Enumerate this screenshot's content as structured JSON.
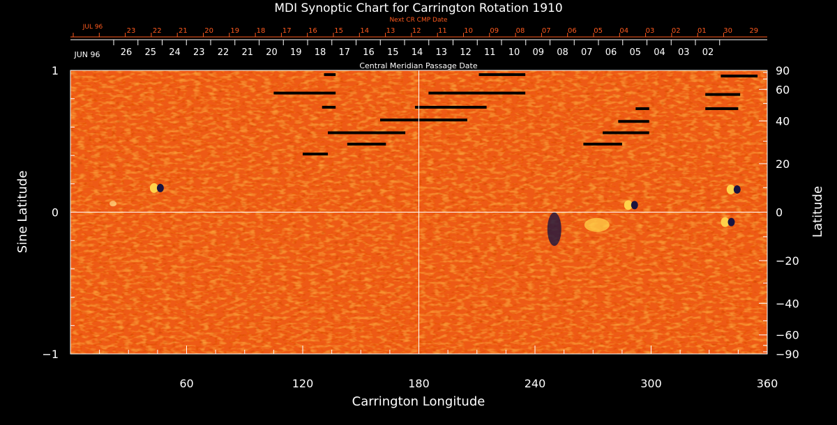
{
  "chart_data": {
    "type": "heatmap",
    "title": "MDI Synoptic Chart for Carrington Rotation 1910",
    "xlabel": "Carrington Longitude",
    "ylabel_left": "Sine Latitude",
    "ylabel_right": "Latitude",
    "xlim": [
      0,
      360
    ],
    "ylim": [
      -1,
      1
    ],
    "x_ticks": [
      60,
      120,
      180,
      240,
      300,
      360
    ],
    "y_ticks_left": [
      -1,
      0,
      1
    ],
    "y_ticks_right": [
      90,
      60,
      40,
      20,
      0,
      -20,
      -40,
      -60,
      -90
    ],
    "next_cr_label": "Next CR CMP Date",
    "next_cr_month": "JUL 96",
    "next_cr_dates": [
      "23",
      "22",
      "21",
      "20",
      "19",
      "18",
      "17",
      "16",
      "15",
      "14",
      "13",
      "12",
      "11",
      "10",
      "09",
      "08",
      "07",
      "06",
      "05",
      "04",
      "03",
      "02",
      "01",
      "30",
      "29"
    ],
    "cmp_month": "JUN 96",
    "cmp_label": "Central Meridian Passage Date",
    "cmp_dates": [
      "26",
      "25",
      "24",
      "23",
      "22",
      "21",
      "20",
      "19",
      "18",
      "17",
      "16",
      "15",
      "14",
      "13",
      "12",
      "11",
      "10",
      "09",
      "08",
      "07",
      "06",
      "05",
      "04",
      "03",
      "02"
    ],
    "grid_lines": {
      "x": [
        180
      ],
      "y": [
        0
      ]
    },
    "colors": {
      "background": "#000000",
      "map_base": "#ee5a14",
      "positive": "#ffd24a",
      "negative": "#1a1440",
      "grid": "#ffffff",
      "date_red": "#ff5a1e"
    },
    "active_regions": [
      {
        "lon": 45,
        "sinlat": 0.17,
        "polarity": "bipolar"
      },
      {
        "lon": 22,
        "sinlat": 0.06,
        "polarity": "weak"
      },
      {
        "lon": 250,
        "sinlat": -0.12,
        "polarity": "negative"
      },
      {
        "lon": 272,
        "sinlat": -0.09,
        "polarity": "positive"
      },
      {
        "lon": 290,
        "sinlat": 0.05,
        "polarity": "bipolar"
      },
      {
        "lon": 340,
        "sinlat": -0.07,
        "polarity": "bipolar"
      },
      {
        "lon": 343,
        "sinlat": 0.16,
        "polarity": "bipolar"
      }
    ],
    "data_gaps": [
      {
        "lon_start": 131,
        "lon_end": 137,
        "sinlat": 0.97
      },
      {
        "lon_start": 211,
        "lon_end": 235,
        "sinlat": 0.97
      },
      {
        "lon_start": 336,
        "lon_end": 355,
        "sinlat": 0.96
      },
      {
        "lon_start": 105,
        "lon_end": 137,
        "sinlat": 0.84
      },
      {
        "lon_start": 185,
        "lon_end": 235,
        "sinlat": 0.84
      },
      {
        "lon_start": 328,
        "lon_end": 346,
        "sinlat": 0.83
      },
      {
        "lon_start": 130,
        "lon_end": 137,
        "sinlat": 0.74
      },
      {
        "lon_start": 178,
        "lon_end": 215,
        "sinlat": 0.74
      },
      {
        "lon_start": 292,
        "lon_end": 299,
        "sinlat": 0.73
      },
      {
        "lon_start": 328,
        "lon_end": 345,
        "sinlat": 0.73
      },
      {
        "lon_start": 160,
        "lon_end": 205,
        "sinlat": 0.65
      },
      {
        "lon_start": 283,
        "lon_end": 299,
        "sinlat": 0.64
      },
      {
        "lon_start": 133,
        "lon_end": 173,
        "sinlat": 0.56
      },
      {
        "lon_start": 275,
        "lon_end": 299,
        "sinlat": 0.56
      },
      {
        "lon_start": 143,
        "lon_end": 163,
        "sinlat": 0.48
      },
      {
        "lon_start": 265,
        "lon_end": 285,
        "sinlat": 0.48
      },
      {
        "lon_start": 120,
        "lon_end": 133,
        "sinlat": 0.41
      }
    ]
  }
}
